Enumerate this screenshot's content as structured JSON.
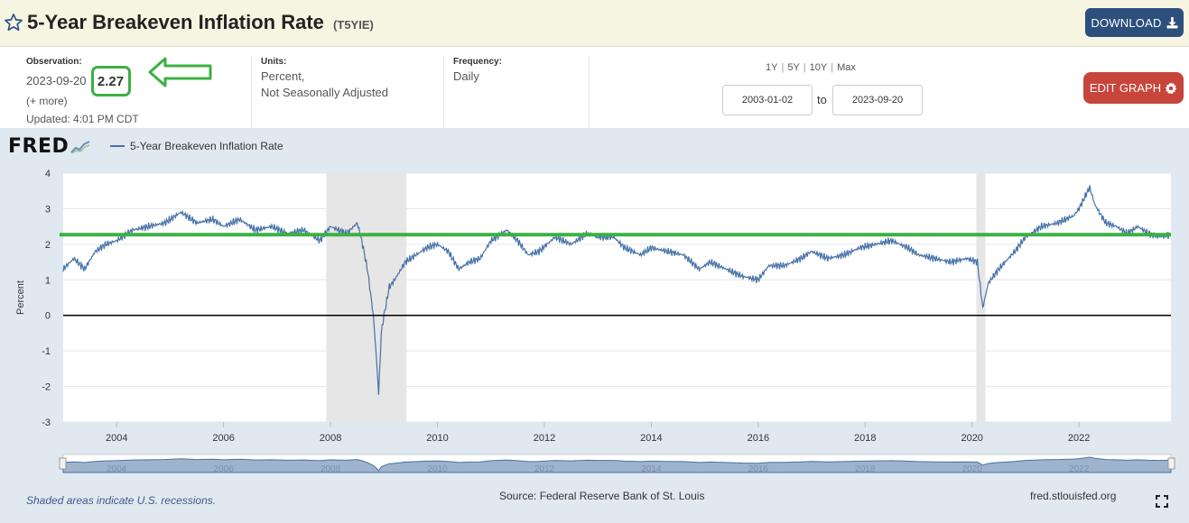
{
  "header": {
    "title": "5-Year Breakeven Inflation Rate",
    "series_id": "(T5YIE)",
    "download_label": "DOWNLOAD",
    "star_icon": "star-outline-icon",
    "download_icon": "download-icon"
  },
  "observation": {
    "label": "Observation:",
    "date": "2023-09-20",
    "value": "2.27",
    "more": "(+ more)",
    "updated": "Updated: 4:01 PM CDT"
  },
  "units": {
    "label": "Units:",
    "line1": "Percent,",
    "line2": "Not Seasonally Adjusted"
  },
  "frequency": {
    "label": "Frequency:",
    "value": "Daily"
  },
  "ranges": [
    "1Y",
    "5Y",
    "10Y",
    "Max"
  ],
  "date_range": {
    "start": "2003-01-02",
    "to_label": "to",
    "end": "2023-09-20"
  },
  "edit_graph_label": "EDIT GRAPH",
  "logo_text": "FRED",
  "legend_label": "5-Year Breakeven Inflation Rate",
  "footer": {
    "recession_note": "Shaded areas indicate U.S. recessions.",
    "source": "Source: Federal Reserve Bank of St. Louis",
    "site": "fred.stlouisfed.org"
  },
  "colors": {
    "series": "#4572a7",
    "highlight": "#3cb043",
    "recession": "#e6e6e6",
    "download_button": "#2c4f7c",
    "edit_button": "#c7453a"
  },
  "chart_data": {
    "type": "line",
    "ylabel": "Percent",
    "xlim": [
      2003.0,
      2023.72
    ],
    "ylim": [
      -3,
      4
    ],
    "y_ticks": [
      "-3",
      "-2",
      "-1",
      "0",
      "1",
      "2",
      "3",
      "4"
    ],
    "x_ticks": [
      "2004",
      "2006",
      "2008",
      "2010",
      "2012",
      "2014",
      "2016",
      "2018",
      "2020",
      "2022"
    ],
    "navigator_ticks": [
      "2004",
      "2006",
      "2008",
      "2010",
      "2012",
      "2014",
      "2016",
      "2018",
      "2020",
      "2022"
    ],
    "recessions": [
      [
        2007.92,
        2009.42
      ],
      [
        2020.08,
        2020.25
      ]
    ],
    "reference_lines": [
      {
        "value": 2.27,
        "color": "#3cb043"
      },
      {
        "value": 0,
        "color": "#000000"
      }
    ],
    "series": [
      {
        "name": "5-Year Breakeven Inflation Rate",
        "x": [
          2003.0,
          2003.2,
          2003.4,
          2003.6,
          2003.8,
          2004.0,
          2004.3,
          2004.6,
          2004.9,
          2005.2,
          2005.5,
          2005.8,
          2006.0,
          2006.3,
          2006.6,
          2006.9,
          2007.2,
          2007.5,
          2007.8,
          2008.0,
          2008.3,
          2008.5,
          2008.6,
          2008.7,
          2008.8,
          2008.85,
          2008.9,
          2008.95,
          2009.0,
          2009.1,
          2009.2,
          2009.4,
          2009.6,
          2009.8,
          2010.0,
          2010.2,
          2010.4,
          2010.6,
          2010.8,
          2011.0,
          2011.3,
          2011.5,
          2011.7,
          2011.9,
          2012.2,
          2012.5,
          2012.8,
          2013.0,
          2013.3,
          2013.5,
          2013.8,
          2014.0,
          2014.3,
          2014.6,
          2014.9,
          2015.1,
          2015.4,
          2015.7,
          2016.0,
          2016.2,
          2016.5,
          2016.8,
          2017.0,
          2017.3,
          2017.6,
          2017.9,
          2018.2,
          2018.5,
          2018.8,
          2019.0,
          2019.3,
          2019.6,
          2019.9,
          2020.1,
          2020.2,
          2020.3,
          2020.5,
          2020.8,
          2021.0,
          2021.3,
          2021.6,
          2021.9,
          2022.0,
          2022.2,
          2022.3,
          2022.5,
          2022.7,
          2022.9,
          2023.1,
          2023.3,
          2023.5,
          2023.72
        ],
        "values": [
          1.3,
          1.6,
          1.3,
          1.8,
          2.0,
          2.1,
          2.4,
          2.5,
          2.6,
          2.9,
          2.6,
          2.7,
          2.5,
          2.7,
          2.4,
          2.5,
          2.3,
          2.4,
          2.1,
          2.5,
          2.3,
          2.6,
          2.0,
          1.2,
          0.0,
          -1.0,
          -2.2,
          -0.5,
          0.0,
          0.8,
          1.0,
          1.5,
          1.7,
          1.9,
          2.0,
          1.8,
          1.3,
          1.5,
          1.6,
          2.1,
          2.4,
          2.1,
          1.7,
          1.8,
          2.2,
          2.0,
          2.3,
          2.2,
          2.2,
          1.9,
          1.7,
          1.9,
          1.8,
          1.7,
          1.3,
          1.5,
          1.3,
          1.1,
          1.0,
          1.4,
          1.4,
          1.6,
          1.8,
          1.6,
          1.7,
          1.9,
          2.0,
          2.1,
          1.9,
          1.7,
          1.6,
          1.5,
          1.6,
          1.5,
          0.2,
          0.9,
          1.3,
          1.8,
          2.2,
          2.5,
          2.6,
          2.8,
          3.0,
          3.6,
          3.1,
          2.6,
          2.5,
          2.3,
          2.5,
          2.3,
          2.2,
          2.27
        ]
      }
    ]
  }
}
